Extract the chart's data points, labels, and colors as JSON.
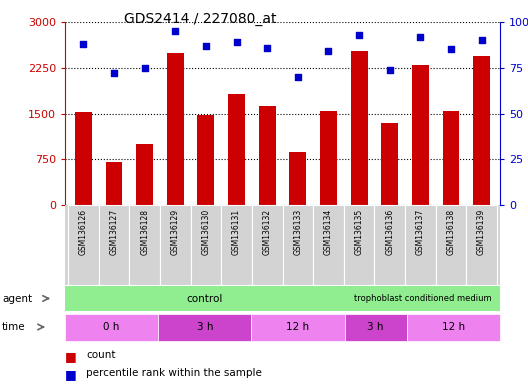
{
  "title": "GDS2414 / 227080_at",
  "samples": [
    "GSM136126",
    "GSM136127",
    "GSM136128",
    "GSM136129",
    "GSM136130",
    "GSM136131",
    "GSM136132",
    "GSM136133",
    "GSM136134",
    "GSM136135",
    "GSM136136",
    "GSM136137",
    "GSM136138",
    "GSM136139"
  ],
  "counts": [
    1520,
    700,
    1000,
    2500,
    1480,
    1820,
    1620,
    870,
    1540,
    2520,
    1340,
    2290,
    1540,
    2450
  ],
  "percentiles": [
    88,
    72,
    75,
    95,
    87,
    89,
    86,
    70,
    84,
    93,
    74,
    92,
    85,
    90
  ],
  "bar_color": "#cc0000",
  "dot_color": "#0000cc",
  "ylim_left": [
    0,
    3000
  ],
  "ylim_right": [
    0,
    100
  ],
  "yticks_left": [
    0,
    750,
    1500,
    2250,
    3000
  ],
  "yticks_right": [
    0,
    25,
    50,
    75,
    100
  ],
  "control_color": "#90ee90",
  "time_colors": [
    "#ee82ee",
    "#cc44cc",
    "#ee82ee",
    "#cc44cc",
    "#ee82ee"
  ],
  "legend_count_color": "#cc0000",
  "legend_dot_color": "#0000cc",
  "background_color": "#ffffff",
  "tick_label_color_left": "#cc0000",
  "tick_label_color_right": "#0000cc",
  "label_box_color": "#d3d3d3",
  "label_box_edge": "#aaaaaa"
}
